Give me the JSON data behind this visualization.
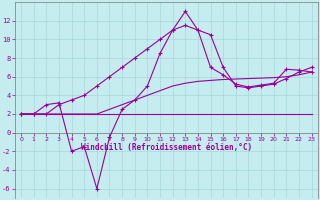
{
  "xlabel": "Windchill (Refroidissement éolien,°C)",
  "xlim": [
    0,
    23
  ],
  "ylim": [
    -7,
    14
  ],
  "xticks": [
    0,
    1,
    2,
    3,
    4,
    5,
    6,
    7,
    8,
    9,
    10,
    11,
    12,
    13,
    14,
    15,
    16,
    17,
    18,
    19,
    20,
    21,
    22,
    23
  ],
  "yticks": [
    -6,
    -4,
    -2,
    0,
    2,
    4,
    6,
    8,
    10,
    12
  ],
  "bg_color": "#c5ecee",
  "grid_color": "#a8d8da",
  "line_color": "#990099",
  "lines": [
    {
      "x": [
        0,
        1,
        2,
        3,
        4,
        5,
        6,
        7,
        8,
        9,
        10,
        11,
        12,
        13,
        14,
        15,
        16,
        17,
        18,
        19,
        20,
        21,
        22,
        23
      ],
      "y": [
        2.0,
        2.0,
        2.0,
        2.0,
        2.0,
        2.0,
        2.0,
        2.0,
        2.0,
        2.0,
        2.0,
        2.0,
        2.0,
        2.0,
        2.0,
        2.0,
        2.0,
        2.0,
        2.0,
        2.0,
        2.0,
        2.0,
        2.0,
        2.0
      ],
      "marker": false
    },
    {
      "x": [
        0,
        1,
        2,
        3,
        4,
        5,
        6,
        7,
        8,
        9,
        10,
        11,
        12,
        13,
        14,
        15,
        16,
        17,
        18,
        19,
        20,
        21,
        22,
        23
      ],
      "y": [
        2.0,
        2.0,
        2.0,
        2.0,
        2.0,
        2.0,
        2.0,
        2.5,
        3.0,
        3.5,
        4.0,
        4.5,
        5.0,
        5.3,
        5.5,
        5.6,
        5.7,
        5.75,
        5.8,
        5.85,
        5.9,
        6.0,
        6.2,
        6.5
      ],
      "marker": false
    },
    {
      "x": [
        0,
        1,
        2,
        3,
        4,
        5,
        6,
        7,
        8,
        9,
        10,
        11,
        12,
        13,
        14,
        15,
        16,
        17,
        18,
        19,
        20,
        21,
        22,
        23
      ],
      "y": [
        2.0,
        2.0,
        2.0,
        3.0,
        3.5,
        4.0,
        5.0,
        6.0,
        7.0,
        8.0,
        9.0,
        10.0,
        11.0,
        11.5,
        11.0,
        10.5,
        7.0,
        5.0,
        4.8,
        5.0,
        5.2,
        5.8,
        6.5,
        7.0
      ],
      "marker": true
    },
    {
      "x": [
        0,
        1,
        2,
        3,
        4,
        5,
        6,
        7,
        8,
        9,
        10,
        11,
        12,
        13,
        14,
        15,
        16,
        17,
        18,
        19,
        20,
        21,
        22,
        23
      ],
      "y": [
        2.0,
        2.0,
        3.0,
        3.2,
        -2.0,
        -1.5,
        -6.0,
        -0.5,
        2.5,
        3.5,
        5.0,
        8.5,
        11.0,
        13.0,
        11.0,
        7.0,
        6.2,
        5.2,
        4.9,
        5.1,
        5.3,
        6.8,
        6.7,
        6.5
      ],
      "marker": true
    }
  ]
}
